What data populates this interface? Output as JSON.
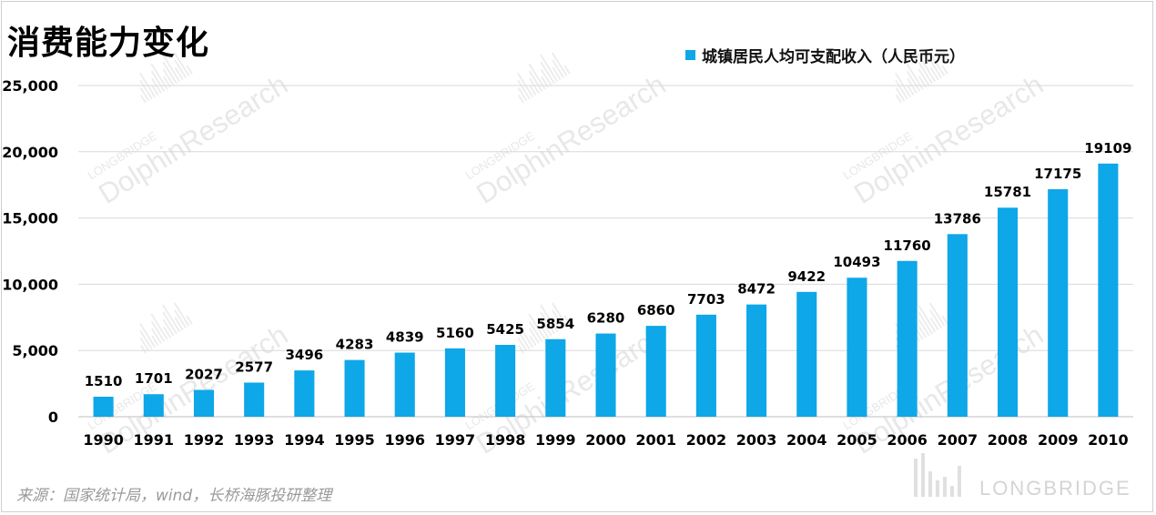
{
  "header": {
    "title": "消费能力变化"
  },
  "footer": {
    "source": "来源：国家统计局，wind，长桥海豚投研整理",
    "brand": "LONGBRIDGE",
    "watermark_lines": [
      "LONGBRIDGE",
      "DolphinResearch"
    ]
  },
  "colors": {
    "bar": "#0EA7E8",
    "grid": "#d9d9d9",
    "axis": "#bfbfbf"
  },
  "chart_data": {
    "type": "bar",
    "title": "消费能力变化",
    "xlabel": "",
    "ylabel": "",
    "ylim": [
      0,
      25000
    ],
    "yticks": [
      0,
      5000,
      10000,
      15000,
      20000,
      25000
    ],
    "ytick_labels": [
      "0",
      "5,000",
      "10,000",
      "15,000",
      "20,000",
      "25,000"
    ],
    "grid": true,
    "legend_position": "top-right",
    "categories": [
      "1990",
      "1991",
      "1992",
      "1993",
      "1994",
      "1995",
      "1996",
      "1997",
      "1998",
      "1999",
      "2000",
      "2001",
      "2002",
      "2003",
      "2004",
      "2005",
      "2006",
      "2007",
      "2008",
      "2009",
      "2010"
    ],
    "series": [
      {
        "name": "城镇居民人均可支配收入（人民币元）",
        "values": [
          1510,
          1701,
          2027,
          2577,
          3496,
          4283,
          4839,
          5160,
          5425,
          5854,
          6280,
          6860,
          7703,
          8472,
          9422,
          10493,
          11760,
          13786,
          15781,
          17175,
          19109
        ]
      }
    ]
  }
}
